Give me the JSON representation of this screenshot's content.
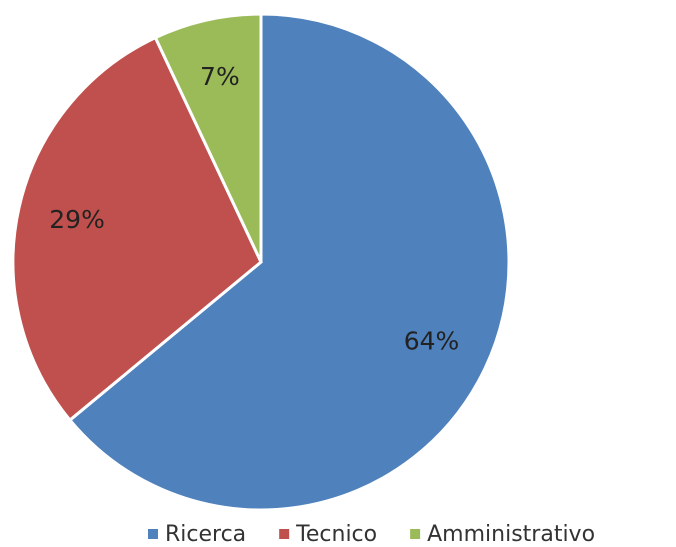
{
  "chart_data": {
    "type": "pie",
    "categories": [
      "Ricerca",
      "Tecnico",
      "Amministrativo"
    ],
    "values": [
      64,
      29,
      7
    ],
    "value_labels": [
      "64%",
      "29%",
      "7%"
    ],
    "colors": [
      "#4f81bd",
      "#c0504d",
      "#9bbb59"
    ],
    "legend": "bottom"
  }
}
